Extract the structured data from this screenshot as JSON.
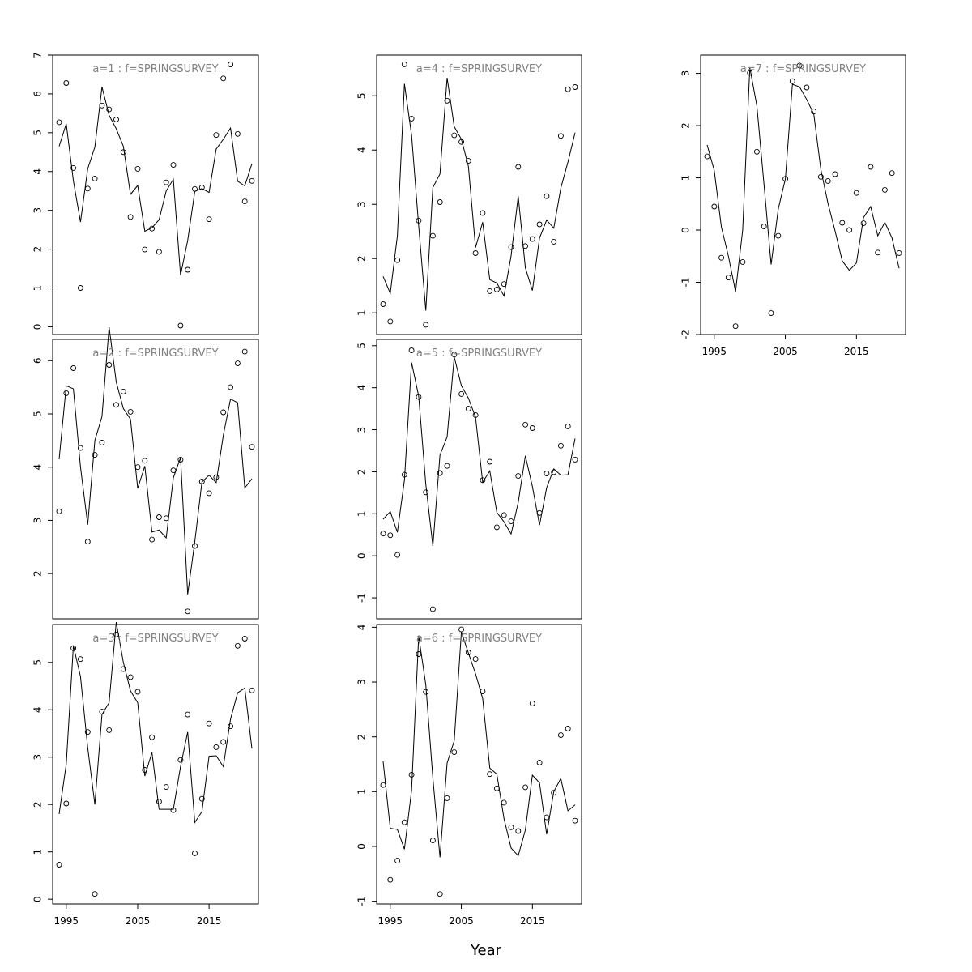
{
  "figure": {
    "xlabel": "Year",
    "series_style": {
      "observed": "points",
      "fitted": "line"
    },
    "color": "#000000",
    "title_color": "#808080"
  },
  "chart_data": [
    {
      "type": "scatter",
      "title": "a=1 : f=SPRINGSURVEY",
      "xlim": [
        1994,
        2021
      ],
      "ylim": [
        -0.2,
        7.0
      ],
      "yticks": [
        0,
        1,
        2,
        3,
        4,
        5,
        6,
        7
      ],
      "xticks": [],
      "x": [
        1994,
        1995,
        1996,
        1997,
        1998,
        1999,
        2000,
        2001,
        2002,
        2003,
        2004,
        2005,
        2006,
        2007,
        2008,
        2009,
        2010,
        2011,
        2012,
        2013,
        2014,
        2015,
        2016,
        2017,
        2018,
        2019,
        2020,
        2021
      ],
      "observed": [
        5.27,
        6.28,
        4.09,
        1.0,
        3.56,
        3.82,
        5.7,
        5.6,
        5.34,
        4.5,
        2.83,
        4.07,
        1.99,
        2.53,
        1.93,
        3.72,
        4.17,
        0.03,
        1.47,
        3.55,
        3.59,
        2.77,
        4.94,
        6.4,
        6.76,
        4.97,
        3.23,
        3.76
      ],
      "fitted": [
        4.65,
        5.23,
        3.76,
        2.7,
        4.07,
        4.63,
        6.18,
        5.45,
        5.1,
        4.65,
        3.41,
        3.64,
        2.46,
        2.55,
        2.76,
        3.5,
        3.8,
        1.33,
        2.22,
        3.49,
        3.56,
        3.46,
        4.58,
        4.83,
        5.12,
        3.75,
        3.63,
        4.2
      ]
    },
    {
      "type": "scatter",
      "title": "a=2 : f=SPRINGSURVEY",
      "xlim": [
        1994,
        2021
      ],
      "ylim": [
        1.15,
        6.4
      ],
      "yticks": [
        2,
        3,
        4,
        5,
        6
      ],
      "xticks": [],
      "x": [
        1994,
        1995,
        1996,
        1997,
        1998,
        1999,
        2000,
        2001,
        2002,
        2003,
        2004,
        2005,
        2006,
        2007,
        2008,
        2009,
        2010,
        2011,
        2012,
        2013,
        2014,
        2015,
        2016,
        2017,
        2018,
        2019,
        2020,
        2021
      ],
      "observed": [
        3.17,
        5.39,
        5.86,
        4.36,
        2.6,
        4.23,
        4.46,
        5.92,
        5.17,
        5.42,
        5.04,
        4.0,
        4.12,
        2.64,
        3.06,
        3.04,
        3.94,
        4.14,
        1.29,
        2.52,
        3.73,
        3.51,
        3.81,
        5.03,
        5.5,
        5.95,
        6.17,
        4.38
      ],
      "fitted": [
        4.15,
        5.53,
        5.47,
        4.0,
        2.92,
        4.5,
        4.95,
        6.63,
        5.6,
        5.1,
        4.9,
        3.6,
        4.02,
        2.78,
        2.82,
        2.67,
        3.8,
        4.18,
        1.61,
        2.6,
        3.72,
        3.85,
        3.71,
        4.6,
        5.28,
        5.21,
        3.61,
        3.78
      ]
    },
    {
      "type": "scatter",
      "title": "a=3 : f=SPRINGSURVEY",
      "xlim": [
        1994,
        2021
      ],
      "ylim": [
        -0.1,
        5.8
      ],
      "yticks": [
        0,
        1,
        2,
        3,
        4,
        5
      ],
      "xticks": [
        1995,
        2005,
        2015
      ],
      "x": [
        1994,
        1995,
        1996,
        1997,
        1998,
        1999,
        2000,
        2001,
        2002,
        2003,
        2004,
        2005,
        2006,
        2007,
        2008,
        2009,
        2010,
        2011,
        2012,
        2013,
        2014,
        2015,
        2016,
        2017,
        2018,
        2019,
        2020,
        2021
      ],
      "observed": [
        0.73,
        2.02,
        5.3,
        5.07,
        3.53,
        0.11,
        3.96,
        3.57,
        5.59,
        4.86,
        4.69,
        4.38,
        2.73,
        3.42,
        2.06,
        2.37,
        1.88,
        2.94,
        3.9,
        0.97,
        2.12,
        3.71,
        3.21,
        3.32,
        3.65,
        5.35,
        5.5,
        4.41
      ],
      "fitted": [
        1.8,
        2.85,
        5.35,
        4.7,
        3.2,
        2.0,
        3.9,
        4.15,
        5.85,
        5.0,
        4.4,
        4.15,
        2.6,
        3.1,
        1.9,
        1.9,
        1.9,
        2.8,
        3.53,
        1.62,
        1.85,
        3.02,
        3.03,
        2.8,
        3.8,
        4.36,
        4.46,
        3.18
      ]
    },
    {
      "type": "scatter",
      "title": "a=4 : f=SPRINGSURVEY",
      "xlim": [
        1994,
        2021
      ],
      "ylim": [
        0.6,
        5.75
      ],
      "yticks": [
        1,
        2,
        3,
        4,
        5
      ],
      "xticks": [],
      "x": [
        1994,
        1995,
        1996,
        1997,
        1998,
        1999,
        2000,
        2001,
        2002,
        2003,
        2004,
        2005,
        2006,
        2007,
        2008,
        2009,
        2010,
        2011,
        2012,
        2013,
        2014,
        2015,
        2016,
        2017,
        2018,
        2019,
        2020,
        2021
      ],
      "observed": [
        1.16,
        0.84,
        1.97,
        5.58,
        4.58,
        2.7,
        0.78,
        2.42,
        3.04,
        4.91,
        4.27,
        4.15,
        3.8,
        2.1,
        2.84,
        1.4,
        1.43,
        1.53,
        2.21,
        3.69,
        2.23,
        2.36,
        2.63,
        3.15,
        2.31,
        4.26,
        5.12,
        5.16
      ],
      "fitted": [
        1.67,
        1.36,
        2.42,
        5.22,
        4.28,
        2.6,
        1.04,
        3.31,
        3.56,
        5.33,
        4.43,
        4.2,
        3.7,
        2.2,
        2.67,
        1.61,
        1.55,
        1.31,
        2.05,
        3.15,
        1.83,
        1.41,
        2.38,
        2.71,
        2.56,
        3.3,
        3.78,
        4.32
      ]
    },
    {
      "type": "scatter",
      "title": "a=5 : f=SPRINGSURVEY",
      "xlim": [
        1994,
        2021
      ],
      "ylim": [
        -1.5,
        5.15
      ],
      "yticks": [
        -1,
        0,
        1,
        2,
        3,
        4,
        5
      ],
      "xticks": [],
      "x": [
        1994,
        1995,
        1996,
        1997,
        1998,
        1999,
        2000,
        2001,
        2002,
        2003,
        2004,
        2005,
        2006,
        2007,
        2008,
        2009,
        2010,
        2011,
        2012,
        2013,
        2014,
        2015,
        2016,
        2017,
        2018,
        2019,
        2020,
        2021
      ],
      "observed": [
        0.53,
        0.49,
        0.02,
        1.93,
        4.89,
        3.78,
        1.51,
        -1.27,
        1.97,
        2.14,
        4.79,
        3.85,
        3.5,
        3.35,
        1.8,
        2.24,
        0.68,
        0.97,
        0.82,
        1.9,
        3.12,
        3.04,
        1.02,
        1.96,
        1.99,
        2.62,
        3.08,
        2.29
      ],
      "fitted": [
        0.87,
        1.05,
        0.56,
        1.8,
        4.6,
        3.8,
        1.7,
        0.23,
        2.4,
        2.83,
        4.73,
        4.05,
        3.75,
        3.3,
        1.75,
        2.02,
        1.03,
        0.81,
        0.52,
        1.27,
        2.38,
        1.65,
        0.73,
        1.62,
        2.07,
        1.92,
        1.93,
        2.79
      ]
    },
    {
      "type": "scatter",
      "title": "a=6 : f=SPRINGSURVEY",
      "xlim": [
        1994,
        2021
      ],
      "ylim": [
        -1.05,
        4.05
      ],
      "yticks": [
        -1,
        0,
        1,
        2,
        3,
        4
      ],
      "xticks": [
        1995,
        2005,
        2015
      ],
      "x": [
        1994,
        1995,
        1996,
        1997,
        1998,
        1999,
        2000,
        2001,
        2002,
        2003,
        2004,
        2005,
        2006,
        2007,
        2008,
        2009,
        2010,
        2011,
        2012,
        2013,
        2014,
        2015,
        2016,
        2017,
        2018,
        2019,
        2020,
        2021
      ],
      "observed": [
        1.12,
        -0.61,
        -0.26,
        0.44,
        1.31,
        3.51,
        2.82,
        0.11,
        -0.87,
        0.88,
        1.72,
        3.96,
        3.54,
        3.42,
        2.83,
        1.32,
        1.06,
        0.8,
        0.35,
        0.28,
        1.08,
        2.61,
        1.53,
        0.53,
        0.98,
        2.03,
        2.15,
        0.47
      ],
      "fitted": [
        1.55,
        0.33,
        0.31,
        -0.05,
        1.02,
        3.84,
        2.95,
        1.25,
        -0.2,
        1.52,
        1.93,
        3.91,
        3.53,
        3.15,
        2.7,
        1.43,
        1.32,
        0.51,
        -0.03,
        -0.17,
        0.3,
        1.3,
        1.16,
        0.22,
        1.0,
        1.24,
        0.65,
        0.76
      ]
    },
    {
      "type": "scatter",
      "title": "a=7 : f=SPRINGSURVEY",
      "xlim": [
        1994,
        2021
      ],
      "ylim": [
        -2.0,
        3.35
      ],
      "yticks": [
        -2,
        -1,
        0,
        1,
        2,
        3
      ],
      "xticks": [
        1995,
        2005,
        2015
      ],
      "x": [
        1994,
        1995,
        1996,
        1997,
        1998,
        1999,
        2000,
        2001,
        2002,
        2003,
        2004,
        2005,
        2006,
        2007,
        2008,
        2009,
        2010,
        2011,
        2012,
        2013,
        2014,
        2015,
        2016,
        2017,
        2018,
        2019,
        2020,
        2021
      ],
      "observed": [
        1.41,
        0.45,
        -0.53,
        -0.91,
        -1.84,
        -0.61,
        3.01,
        1.5,
        0.07,
        -1.59,
        -0.11,
        0.98,
        2.85,
        3.15,
        2.73,
        2.27,
        1.02,
        0.94,
        1.07,
        0.14,
        0.0,
        0.71,
        0.13,
        1.21,
        -0.43,
        0.77,
        1.09,
        -0.44
      ],
      "fitted": [
        1.63,
        1.14,
        0.06,
        -0.5,
        -1.18,
        0.0,
        3.11,
        2.38,
        0.88,
        -0.66,
        0.4,
        0.98,
        2.79,
        2.74,
        2.5,
        2.22,
        1.16,
        0.51,
        -0.02,
        -0.59,
        -0.77,
        -0.63,
        0.24,
        0.45,
        -0.11,
        0.15,
        -0.15,
        -0.73
      ]
    }
  ]
}
